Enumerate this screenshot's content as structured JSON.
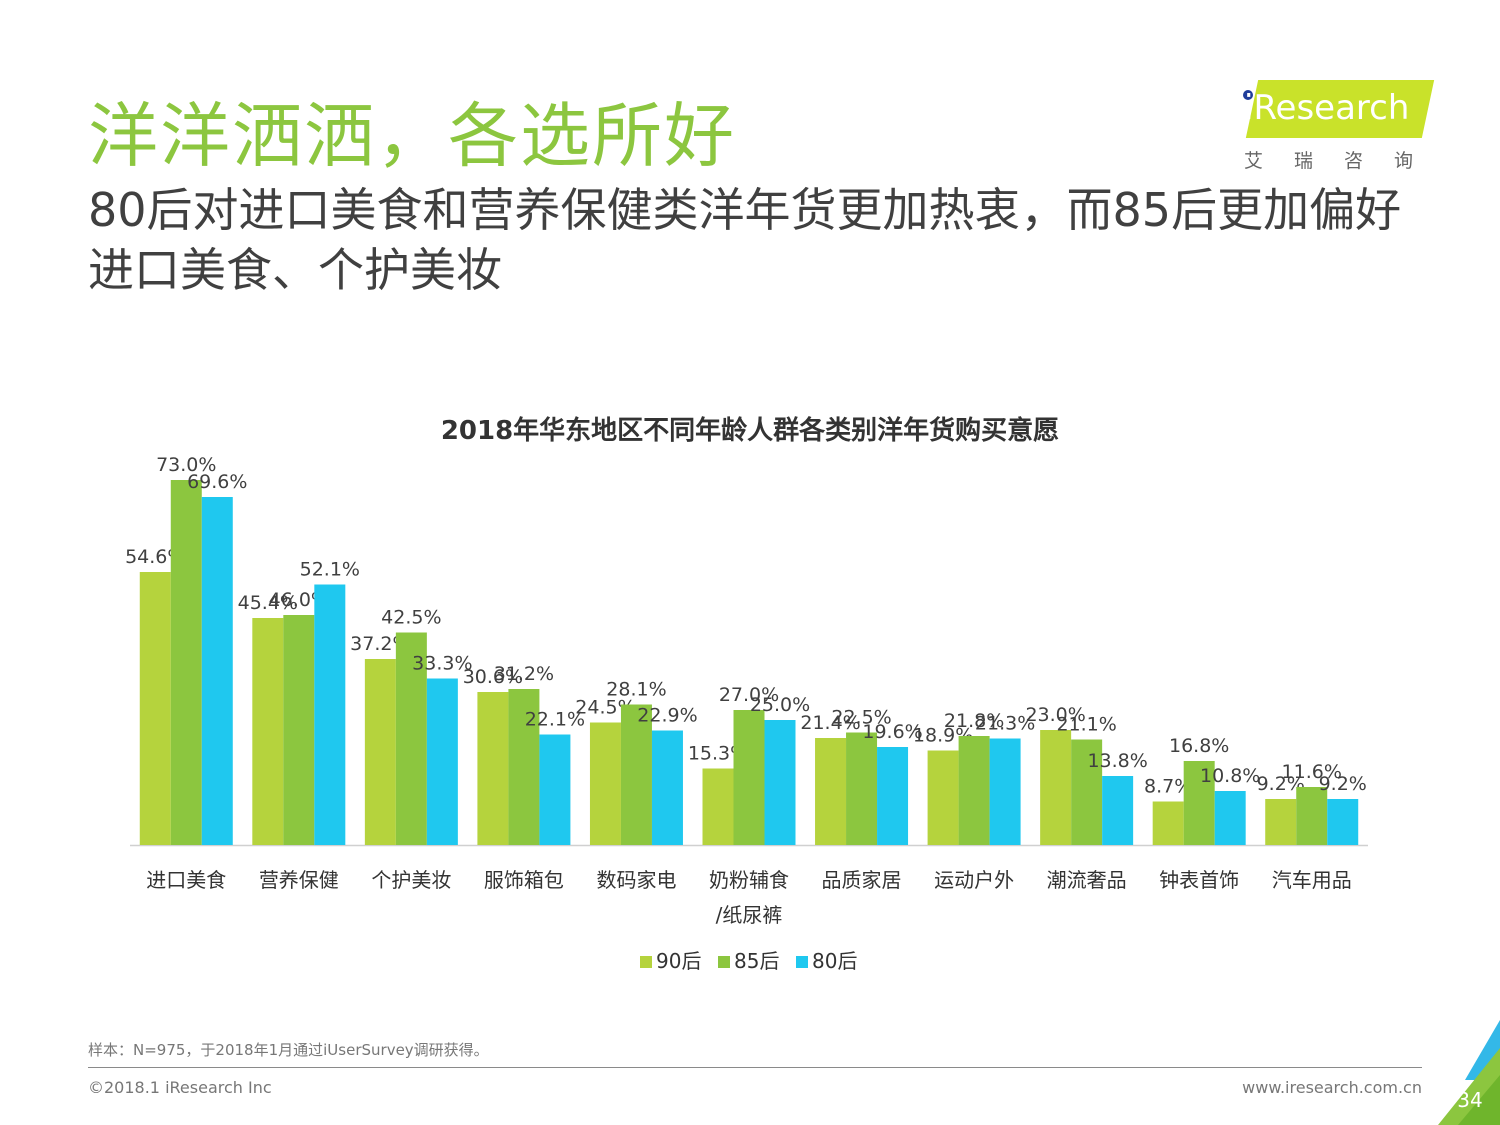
{
  "header": {
    "title": "洋洋洒洒，各选所好",
    "subtitle": "80后对进口美食和营养保健类洋年货更加热衷，而85后更加偏好进口美食、个护美妆"
  },
  "logo": {
    "name": "iResearch",
    "sub": "艾瑞咨询"
  },
  "chart_data": {
    "type": "bar",
    "title": "2018年华东地区不同年龄人群各类别洋年货购买意愿",
    "categories": [
      "进口美食",
      "营养保健",
      "个护美妆",
      "服饰箱包",
      "数码家电",
      "奶粉辅食/纸尿裤",
      "品质家居",
      "运动户外",
      "潮流奢品",
      "钟表首饰",
      "汽车用品"
    ],
    "category_lines": [
      [
        "进口美食"
      ],
      [
        "营养保健"
      ],
      [
        "个护美妆"
      ],
      [
        "服饰箱包"
      ],
      [
        "数码家电"
      ],
      [
        "奶粉辅食",
        "/纸尿裤"
      ],
      [
        "品质家居"
      ],
      [
        "运动户外"
      ],
      [
        "潮流奢品"
      ],
      [
        "钟表首饰"
      ],
      [
        "汽车用品"
      ]
    ],
    "series": [
      {
        "name": "90后",
        "color": "#b5d33d",
        "values": [
          54.6,
          45.4,
          37.2,
          30.6,
          24.5,
          15.3,
          21.4,
          18.9,
          23.0,
          8.7,
          9.2
        ]
      },
      {
        "name": "85后",
        "color": "#8cc63f",
        "values": [
          73.0,
          46.0,
          42.5,
          31.2,
          28.1,
          27.0,
          22.5,
          21.8,
          21.1,
          16.8,
          11.6
        ]
      },
      {
        "name": "80后",
        "color": "#1fc8ef",
        "values": [
          69.6,
          52.1,
          33.3,
          22.1,
          22.9,
          25.0,
          19.6,
          21.3,
          13.8,
          10.8,
          9.2
        ]
      }
    ],
    "value_suffix": "%",
    "ylim": [
      0,
      80
    ],
    "grid": false,
    "legend_position": "bottom-center"
  },
  "footer": {
    "note": "样本：N=975，于2018年1月通过iUserSurvey调研获得。",
    "copyright": "©2018.1 iResearch Inc",
    "website": "www.iresearch.com.cn",
    "page": "34"
  }
}
